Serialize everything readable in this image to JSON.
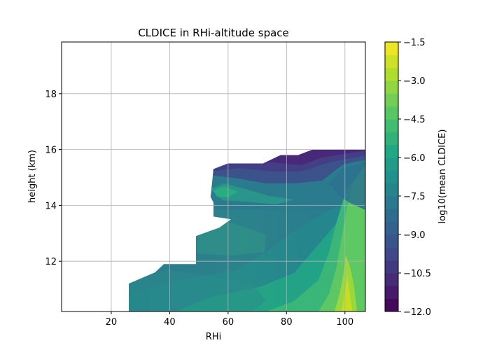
{
  "chart_data": {
    "type": "contourf",
    "title": "CLDICE in RHi-altitude space",
    "xlabel": "RHi",
    "ylabel": "height (km)",
    "xlim": [
      3,
      107
    ],
    "ylim": [
      10.2,
      19.85
    ],
    "xticks": [
      20,
      40,
      60,
      80,
      100
    ],
    "yticks": [
      12,
      14,
      16,
      18
    ],
    "grid": true,
    "colormap": "viridis",
    "colorbar": {
      "label": "log10(mean CLDICE)",
      "range": [
        -12.0,
        -1.5
      ],
      "ticks": [
        "−1.5",
        "−3.0",
        "−4.5",
        "−6.0",
        "−7.5",
        "−9.0",
        "−10.5",
        "−12.0"
      ],
      "tick_values": [
        -1.5,
        -3.0,
        -4.5,
        -6.0,
        -7.5,
        -9.0,
        -10.5,
        -12.0
      ],
      "levels": [
        -12.0,
        -11.5,
        -11.0,
        -10.5,
        -10.0,
        -9.5,
        -9.0,
        -8.5,
        -8.0,
        -7.5,
        -7.0,
        -6.5,
        -6.0,
        -5.5,
        -5.0,
        -4.5,
        -4.0,
        -3.5,
        -3.0,
        -2.5,
        -2.0,
        -1.5
      ]
    },
    "data_domain_outline": [
      [
        26,
        10.2
      ],
      [
        26,
        11.2
      ],
      [
        35,
        11.6
      ],
      [
        38,
        11.9
      ],
      [
        49,
        11.9
      ],
      [
        49,
        12.9
      ],
      [
        57,
        13.2
      ],
      [
        61,
        13.5
      ],
      [
        55,
        13.6
      ],
      [
        55,
        14.1
      ],
      [
        54,
        14.3
      ],
      [
        55,
        15.3
      ],
      [
        60,
        15.5
      ],
      [
        72,
        15.5
      ],
      [
        78,
        15.8
      ],
      [
        84,
        15.8
      ],
      [
        89,
        16.0
      ],
      [
        107,
        16.0
      ],
      [
        107,
        10.2
      ]
    ],
    "field_samples": [
      {
        "rhi": 30,
        "height": 10.5,
        "log10_cldice": -7.5
      },
      {
        "rhi": 60,
        "height": 11.0,
        "log10_cldice": -7.0
      },
      {
        "rhi": 90,
        "height": 11.0,
        "log10_cldice": -6.0
      },
      {
        "rhi": 100,
        "height": 11.0,
        "log10_cldice": -3.5
      },
      {
        "rhi": 101,
        "height": 10.4,
        "log10_cldice": -3.0
      },
      {
        "rhi": 100,
        "height": 13.5,
        "log10_cldice": -5.5
      },
      {
        "rhi": 70,
        "height": 13.0,
        "log10_cldice": -7.0
      },
      {
        "rhi": 57,
        "height": 14.4,
        "log10_cldice": -6.5
      },
      {
        "rhi": 70,
        "height": 14.8,
        "log10_cldice": -9.5
      },
      {
        "rhi": 90,
        "height": 15.8,
        "log10_cldice": -11.0
      },
      {
        "rhi": 100,
        "height": 15.0,
        "log10_cldice": -6.5
      }
    ]
  }
}
